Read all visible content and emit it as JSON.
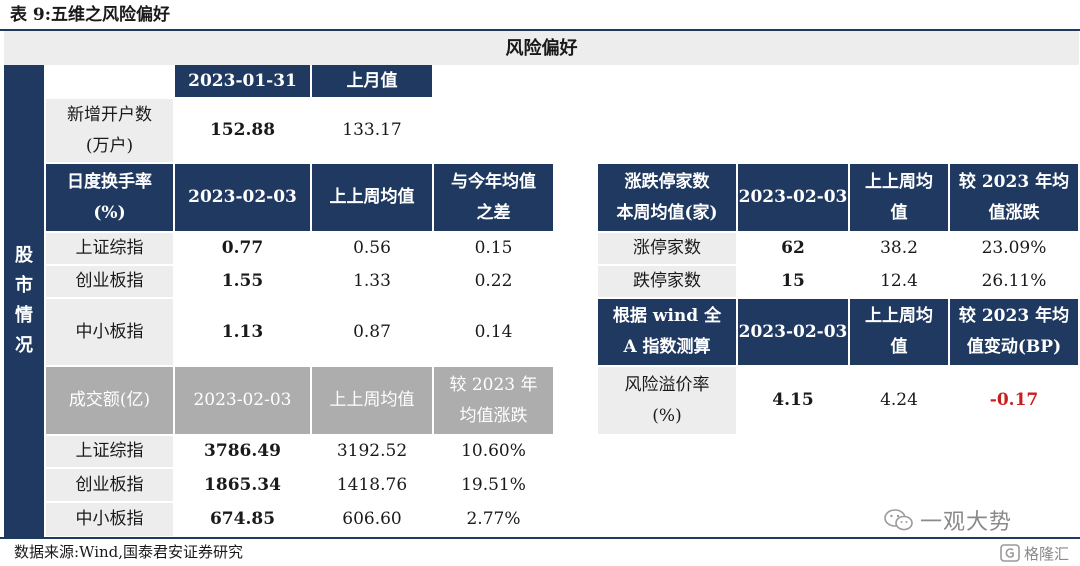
{
  "title": "表 9:五维之风险偏好",
  "header": "风险偏好",
  "side_label": [
    "股",
    "市",
    "情",
    "况"
  ],
  "account": {
    "col_date": "2023-01-31",
    "col_prev": "上月值",
    "row_label_1": "新增开户数",
    "row_label_2": "(万户)",
    "value": "152.88",
    "prev": "133.17"
  },
  "turnover": {
    "label_1": "日度换手率",
    "label_2": "(%)",
    "col_date": "2023-02-03",
    "col_avg": "上上周均值",
    "col_diff_1": "与今年均值",
    "col_diff_2": "之差",
    "rows": [
      {
        "name": "上证综指",
        "value": "0.77",
        "avg": "0.56",
        "diff": "0.15"
      },
      {
        "name": "创业板指",
        "value": "1.55",
        "avg": "1.33",
        "diff": "0.22"
      },
      {
        "name": "中小板指",
        "value": "1.13",
        "avg": "0.87",
        "diff": "0.14"
      }
    ]
  },
  "volume": {
    "label": "成交额(亿)",
    "col_date": "2023-02-03",
    "col_avg": "上上周均值",
    "col_chg_1": "较 2023 年",
    "col_chg_2": "均值涨跌",
    "rows": [
      {
        "name": "上证综指",
        "value": "3786.49",
        "avg": "3192.52",
        "chg": "10.60%"
      },
      {
        "name": "创业板指",
        "value": "1865.34",
        "avg": "1418.76",
        "chg": "19.51%"
      },
      {
        "name": "中小板指",
        "value": "674.85",
        "avg": "606.60",
        "chg": "2.77%"
      }
    ]
  },
  "limit": {
    "label_1": "涨跌停家数",
    "label_2": "本周均值(家)",
    "col_date": "2023-02-03",
    "col_avg_1": "上上周均",
    "col_avg_2": "值",
    "col_chg_1": "较 2023 年均",
    "col_chg_2": "值涨跌",
    "rows": [
      {
        "name": "涨停家数",
        "value": "62",
        "avg": "38.2",
        "chg": "23.09%"
      },
      {
        "name": "跌停家数",
        "value": "15",
        "avg": "12.4",
        "chg": "26.11%"
      }
    ]
  },
  "premium": {
    "label_1": "根据 wind 全",
    "label_2": "A 指数测算",
    "col_date": "2023-02-03",
    "col_avg_1": "上上周均",
    "col_avg_2": "值",
    "col_chg_1": "较 2023 年均",
    "col_chg_2": "值变动(BP)",
    "row_label_1": "风险溢价率",
    "row_label_2": "(%)",
    "value": "4.15",
    "avg": "4.24",
    "chg": "-0.17"
  },
  "source": "数据来源:Wind,国泰君安证券研究",
  "watermark": {
    "account": "一观大势",
    "brand": "格隆汇"
  },
  "colors": {
    "navy": "#1f3961",
    "gray_header": "#adadad",
    "row_shade": "#ededed",
    "negative": "#c81e1e"
  }
}
